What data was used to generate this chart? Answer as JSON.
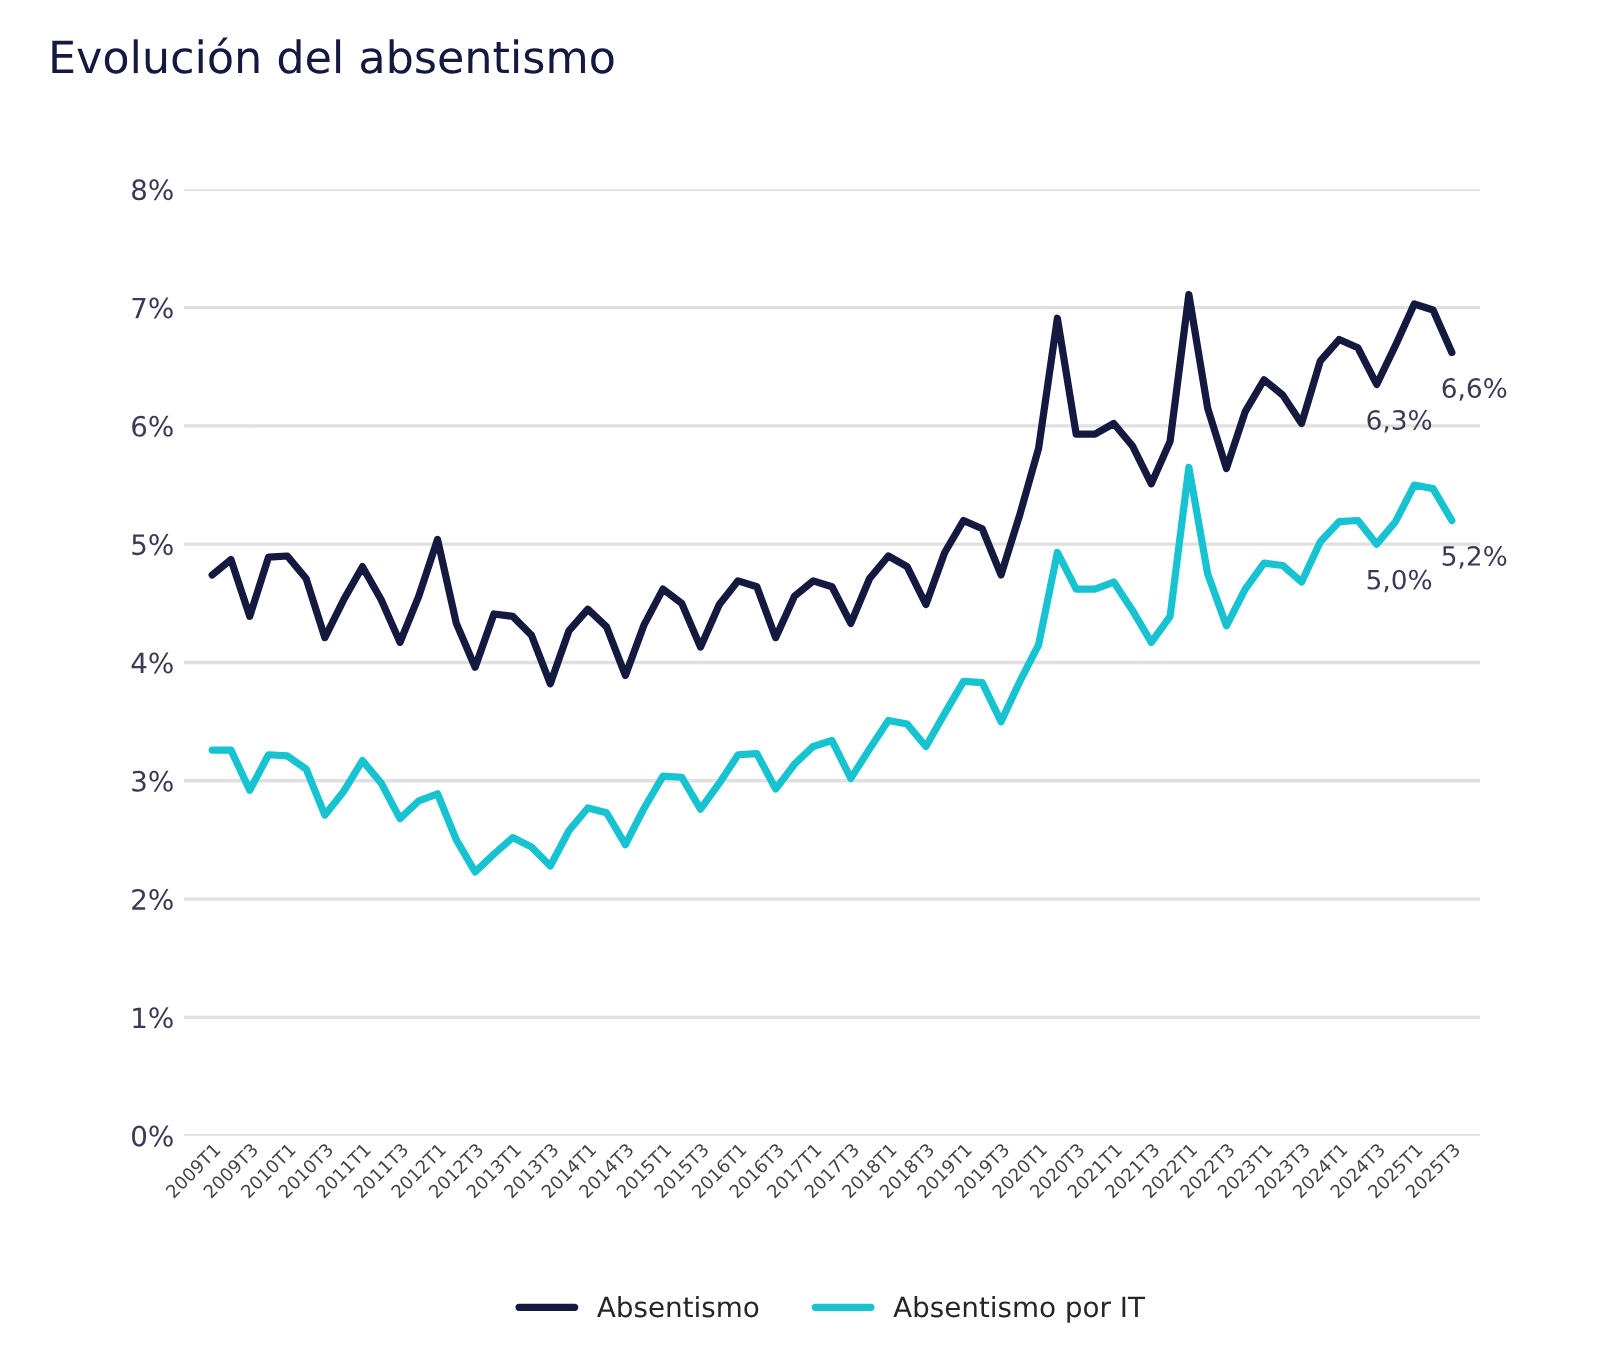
{
  "chart_data": {
    "type": "line",
    "title": "Evolución del absentismo",
    "categories": [
      "2009T1",
      null,
      "2009T3",
      null,
      "2010T1",
      null,
      "2010T3",
      null,
      "2011T1",
      null,
      "2011T3",
      null,
      "2012T1",
      null,
      "2012T3",
      null,
      "2013T1",
      null,
      "2013T3",
      null,
      "2014T1",
      null,
      "2014T3",
      null,
      "2015T1",
      null,
      "2015T3",
      null,
      "2016T1",
      null,
      "2016T3",
      null,
      "2017T1",
      null,
      "2017T3",
      null,
      "2018T1",
      null,
      "2018T3",
      null,
      "2019T1",
      null,
      "2019T3",
      null,
      "2020T1",
      null,
      "2020T3",
      null,
      "2021T1",
      null,
      "2021T3",
      null,
      "2022T1",
      null,
      "2022T3",
      null,
      "2023T1",
      null,
      "2023T3",
      null,
      "2024T1",
      null,
      "2024T3",
      null,
      "2025T1",
      null,
      "2025T3"
    ],
    "series": [
      {
        "name": "Absentismo",
        "color": "#14193f",
        "values": [
          4.74,
          4.87,
          4.39,
          4.89,
          4.9,
          4.71,
          4.21,
          4.53,
          4.81,
          4.53,
          4.17,
          4.56,
          5.04,
          4.33,
          3.96,
          4.41,
          4.39,
          4.23,
          3.82,
          4.27,
          4.45,
          4.3,
          3.89,
          4.32,
          4.62,
          4.5,
          4.13,
          4.49,
          4.69,
          4.64,
          4.21,
          4.56,
          4.69,
          4.64,
          4.33,
          4.71,
          4.9,
          4.81,
          4.49,
          4.93,
          5.2,
          5.13,
          4.74,
          5.25,
          5.81,
          6.91,
          5.93,
          5.93,
          6.02,
          5.83,
          5.51,
          5.87,
          7.11,
          6.15,
          5.64,
          6.12,
          6.39,
          6.26,
          6.02,
          6.55,
          6.73,
          6.66,
          6.35,
          6.68,
          7.03,
          6.98,
          6.62
        ],
        "value_labels": [
          null,
          null,
          null,
          null,
          null,
          null,
          null,
          null,
          null,
          null,
          null,
          null,
          null,
          null,
          null,
          null,
          null,
          null,
          null,
          null,
          null,
          null,
          null,
          null,
          null,
          null,
          null,
          null,
          null,
          null,
          null,
          null,
          null,
          null,
          null,
          null,
          null,
          null,
          null,
          null,
          null,
          null,
          null,
          null,
          null,
          null,
          null,
          null,
          null,
          null,
          null,
          null,
          null,
          null,
          null,
          null,
          null,
          null,
          null,
          null,
          null,
          null,
          "6,3%",
          null,
          null,
          null,
          "6,6%"
        ]
      },
      {
        "name": "Absentismo por IT",
        "color": "#17c3d0",
        "values": [
          3.26,
          3.26,
          2.92,
          3.22,
          3.21,
          3.1,
          2.71,
          2.91,
          3.17,
          2.98,
          2.68,
          2.83,
          2.89,
          2.5,
          2.23,
          2.38,
          2.52,
          2.44,
          2.28,
          2.58,
          2.77,
          2.73,
          2.46,
          2.77,
          3.04,
          3.03,
          2.76,
          2.98,
          3.22,
          3.23,
          2.93,
          3.14,
          3.29,
          3.34,
          3.02,
          3.27,
          3.51,
          3.48,
          3.29,
          3.57,
          3.84,
          3.83,
          3.5,
          3.84,
          4.15,
          4.93,
          4.62,
          4.62,
          4.68,
          4.44,
          4.17,
          4.39,
          5.65,
          4.75,
          4.31,
          4.62,
          4.84,
          4.82,
          4.68,
          5.02,
          5.19,
          5.2,
          5.0,
          5.19,
          5.5,
          5.47,
          5.2
        ],
        "value_labels": [
          null,
          null,
          null,
          null,
          null,
          null,
          null,
          null,
          null,
          null,
          null,
          null,
          null,
          null,
          null,
          null,
          null,
          null,
          null,
          null,
          null,
          null,
          null,
          null,
          null,
          null,
          null,
          null,
          null,
          null,
          null,
          null,
          null,
          null,
          null,
          null,
          null,
          null,
          null,
          null,
          null,
          null,
          null,
          null,
          null,
          null,
          null,
          null,
          null,
          null,
          null,
          null,
          null,
          null,
          null,
          null,
          null,
          null,
          null,
          null,
          null,
          null,
          "5,0%",
          null,
          null,
          null,
          "5,2%"
        ]
      }
    ],
    "ylim": [
      0,
      8
    ],
    "yticks": [
      {
        "value": 0,
        "label": "0%"
      },
      {
        "value": 1,
        "label": "1%"
      },
      {
        "value": 2,
        "label": "2%"
      },
      {
        "value": 3,
        "label": "3%"
      },
      {
        "value": 4,
        "label": "4%"
      },
      {
        "value": 5,
        "label": "5%"
      },
      {
        "value": 6,
        "label": "6%"
      },
      {
        "value": 7,
        "label": "7%"
      },
      {
        "value": 8,
        "label": "8%"
      }
    ],
    "grid": "y",
    "legend": "bottom",
    "marker": "none",
    "line_style": "solid"
  }
}
